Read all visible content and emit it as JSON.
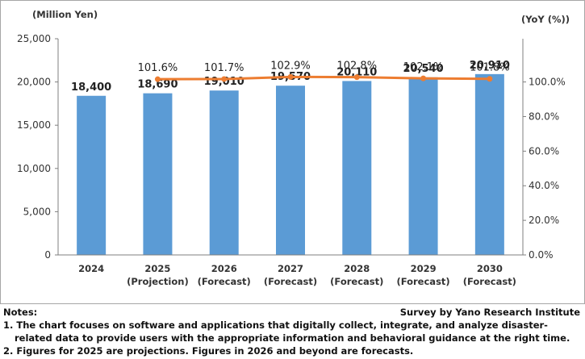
{
  "chart_data": {
    "type": "bar+line",
    "left_axis_label": "(Million Yen)",
    "right_axis_label": "(YoY (%))",
    "categories": [
      [
        "2024"
      ],
      [
        "2025",
        "(Projection)"
      ],
      [
        "2026",
        "(Forecast)"
      ],
      [
        "2027",
        "(Forecast)"
      ],
      [
        "2028",
        "(Forecast)"
      ],
      [
        "2029",
        "(Forecast)"
      ],
      [
        "2030",
        "(Forecast)"
      ]
    ],
    "bars": {
      "values": [
        18400,
        18690,
        19010,
        19570,
        20110,
        20540,
        20910
      ],
      "labels": [
        "18,400",
        "18,690",
        "19,010",
        "19,570",
        "20,110",
        "20,540",
        "20,910"
      ],
      "color": "#5b9bd5"
    },
    "line": {
      "values": [
        null,
        101.6,
        101.7,
        102.9,
        102.8,
        102.1,
        101.8
      ],
      "labels": [
        "",
        "101.6%",
        "101.7%",
        "102.9%",
        "102.8%",
        "102.1%",
        "101.8%"
      ],
      "color": "#ed7d31"
    },
    "left_axis": {
      "min": 0,
      "max": 25000,
      "ticks": [
        "0",
        "5,000",
        "10,000",
        "15,000",
        "20,000",
        "25,000"
      ]
    },
    "right_axis": {
      "min": 0,
      "max": 125,
      "ticks": [
        "0.0%",
        "20.0%",
        "40.0%",
        "60.0%",
        "80.0%",
        "100.0%"
      ]
    },
    "grid": false,
    "legend": "none"
  },
  "notes": {
    "heading": "Notes:",
    "credit": "Survey by Yano Research Institute",
    "note_1a": "1. The chart focuses on software and applications that digitally collect, integrate, and analyze disaster-",
    "note_1b": "related data to provide users with the appropriate information and behavioral guidance at the right time.",
    "note_2": "2. Figures for 2025 are projections. Figures in 2026 and beyond are forecasts."
  }
}
